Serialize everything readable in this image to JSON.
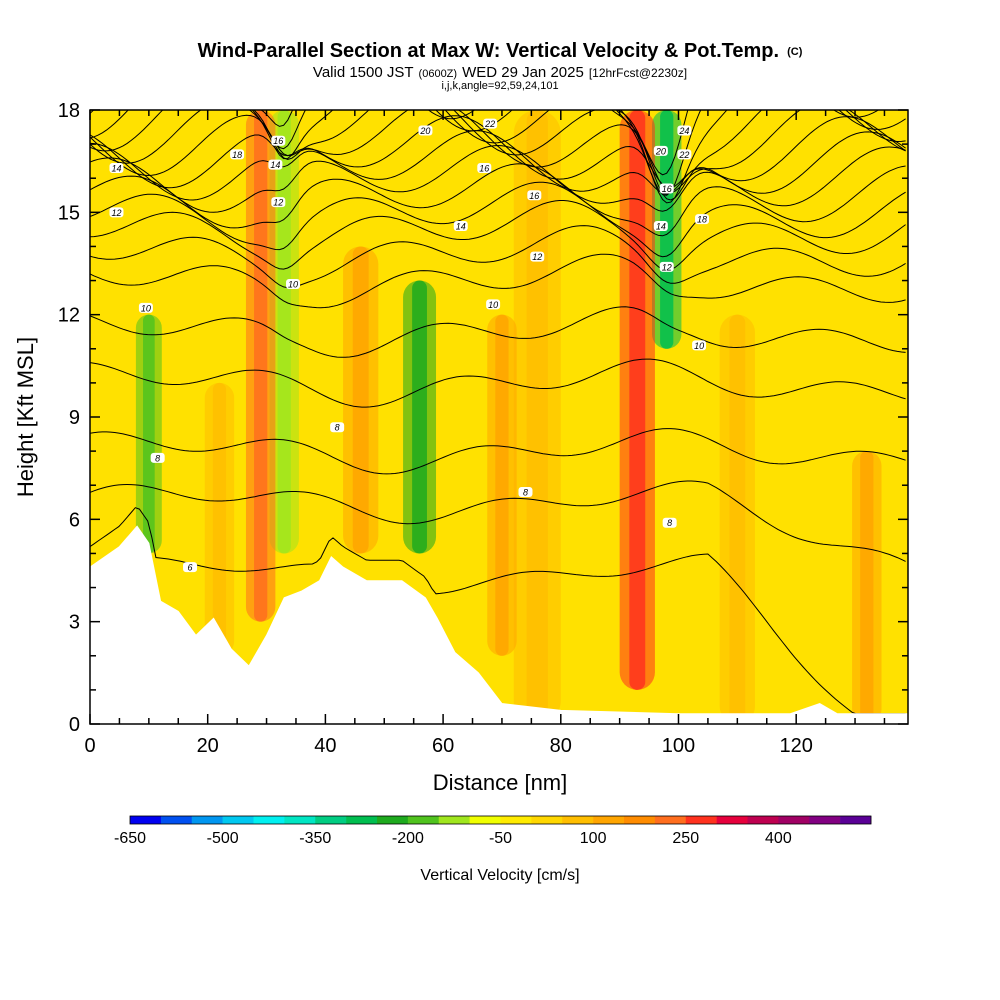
{
  "chart_data": {
    "type": "heatmap",
    "title": "Wind-Parallel Section at Max W: Vertical Velocity & Pot.Temp.",
    "title_mark": "(C)",
    "subtitle_parts": [
      "Valid 1500 JST",
      "(0600Z)",
      "WED 29 Jan 2025",
      "[12hrFcst@2230z]"
    ],
    "subsubtitle": "i,j,k,angle=92,59,24,101",
    "xlabel": "Distance [nm]",
    "ylabel": "Height [Kft MSL]",
    "xlim": [
      0,
      139
    ],
    "ylim": [
      0,
      18
    ],
    "xticks": [
      0,
      20,
      40,
      60,
      80,
      100,
      120
    ],
    "yticks": [
      0,
      3,
      6,
      9,
      12,
      15,
      18
    ],
    "colorbar": {
      "label": "Vertical Velocity [cm/s]",
      "tick_labels": [
        "-650",
        "-500",
        "-350",
        "-200",
        "-50",
        "100",
        "250",
        "400"
      ],
      "colors": [
        "#0000f0",
        "#0050f0",
        "#0096f0",
        "#00c8f0",
        "#00f0f0",
        "#00e6c3",
        "#00cd82",
        "#00be50",
        "#1eaa1e",
        "#50c31e",
        "#a0e61e",
        "#f0ff00",
        "#ffeb00",
        "#ffd700",
        "#ffbe00",
        "#ffa500",
        "#ff8c00",
        "#ff6e1e",
        "#ff321e",
        "#e6003c",
        "#be0050",
        "#a00064",
        "#820082",
        "#5a0096"
      ]
    },
    "background_color": "#ffe100",
    "terrain": [
      [
        0,
        4.6
      ],
      [
        5,
        5.2
      ],
      [
        8,
        5.8
      ],
      [
        10,
        5.3
      ],
      [
        12,
        3.6
      ],
      [
        15,
        3.3
      ],
      [
        18,
        2.6
      ],
      [
        21,
        3.1
      ],
      [
        24,
        2.2
      ],
      [
        27,
        1.7
      ],
      [
        30,
        2.6
      ],
      [
        33,
        3.7
      ],
      [
        36,
        3.9
      ],
      [
        39,
        4.2
      ],
      [
        41,
        4.9
      ],
      [
        43,
        4.6
      ],
      [
        47,
        4.2
      ],
      [
        53,
        4.2
      ],
      [
        57,
        3.7
      ],
      [
        59,
        3.1
      ],
      [
        62,
        2.1
      ],
      [
        66,
        1.5
      ],
      [
        70,
        0.6
      ],
      [
        80,
        0.4
      ],
      [
        100,
        0.3
      ],
      [
        119,
        0.3
      ],
      [
        124,
        0.6
      ],
      [
        127,
        0.3
      ],
      [
        139,
        0.3
      ]
    ],
    "vv_streaks": [
      {
        "x": 10,
        "width": 2.2,
        "bottom": 5,
        "top": 12,
        "value": -200
      },
      {
        "x": 33,
        "width": 2.5,
        "bottom": 5,
        "top": 18,
        "value": -150
      },
      {
        "x": 56,
        "width": 2.8,
        "bottom": 5,
        "top": 13,
        "value": -250
      },
      {
        "x": 98,
        "width": 2.5,
        "bottom": 11,
        "top": 18,
        "value": -300
      },
      {
        "x": 29,
        "width": 2.5,
        "bottom": 3,
        "top": 18,
        "value": 200
      },
      {
        "x": 93,
        "width": 3.0,
        "bottom": 1,
        "top": 18,
        "value": 250
      },
      {
        "x": 22,
        "width": 2.5,
        "bottom": 2,
        "top": 10,
        "value": 80
      },
      {
        "x": 46,
        "width": 3.0,
        "bottom": 5,
        "top": 14,
        "value": 100
      },
      {
        "x": 76,
        "width": 4.0,
        "bottom": 0,
        "top": 18,
        "value": 80
      },
      {
        "x": 110,
        "width": 3.0,
        "bottom": 0,
        "top": 12,
        "value": 80
      },
      {
        "x": 132,
        "width": 2.5,
        "bottom": 0,
        "top": 8,
        "value": 100
      },
      {
        "x": 70,
        "width": 2.5,
        "bottom": 2,
        "top": 12,
        "value": 100
      }
    ],
    "theta_contours": [
      {
        "level": "6",
        "label_x": 17,
        "base": 4.4
      },
      {
        "level": "8",
        "label_x": 76,
        "base": 6.5
      },
      {
        "level": "8",
        "label_x": 41,
        "base": 8.0
      },
      {
        "level": "10",
        "label_x": 34,
        "base": 11.5
      },
      {
        "level": "12",
        "label_x": 4,
        "base": 14.7
      },
      {
        "level": "14",
        "label_x": 4,
        "base": 15.5
      },
      {
        "level": "16",
        "label_x": 32,
        "base": 16.3
      },
      {
        "level": "18",
        "label_x": 25,
        "base": 17.1
      },
      {
        "level": "20",
        "label_x": 57,
        "base": 17.9
      },
      {
        "level": "22",
        "label_x": 68,
        "base": 18.8
      }
    ],
    "contour_labels": [
      {
        "text": "6",
        "x": 17,
        "y": 4.6
      },
      {
        "text": "8",
        "x": 11.5,
        "y": 7.8
      },
      {
        "text": "8",
        "x": 42,
        "y": 8.7
      },
      {
        "text": "8",
        "x": 74,
        "y": 6.8
      },
      {
        "text": "8",
        "x": 98.5,
        "y": 5.9
      },
      {
        "text": "10",
        "x": 9.5,
        "y": 12.2
      },
      {
        "text": "10",
        "x": 34.5,
        "y": 12.9
      },
      {
        "text": "10",
        "x": 68.5,
        "y": 12.3
      },
      {
        "text": "10",
        "x": 103.5,
        "y": 11.1
      },
      {
        "text": "12",
        "x": 4.5,
        "y": 15.0
      },
      {
        "text": "12",
        "x": 32,
        "y": 15.3
      },
      {
        "text": "12",
        "x": 76,
        "y": 13.7
      },
      {
        "text": "12",
        "x": 98,
        "y": 13.4
      },
      {
        "text": "14",
        "x": 4.5,
        "y": 16.3
      },
      {
        "text": "14",
        "x": 31.5,
        "y": 16.4
      },
      {
        "text": "14",
        "x": 63,
        "y": 14.6
      },
      {
        "text": "14",
        "x": 97,
        "y": 14.6
      },
      {
        "text": "16",
        "x": 32,
        "y": 17.1
      },
      {
        "text": "16",
        "x": 67,
        "y": 16.3
      },
      {
        "text": "16",
        "x": 75.5,
        "y": 15.5
      },
      {
        "text": "16",
        "x": 98,
        "y": 15.7
      },
      {
        "text": "18",
        "x": 25,
        "y": 16.7
      },
      {
        "text": "18",
        "x": 104,
        "y": 14.8
      },
      {
        "text": "20",
        "x": 57,
        "y": 17.4
      },
      {
        "text": "20",
        "x": 97,
        "y": 16.8
      },
      {
        "text": "22",
        "x": 68,
        "y": 17.6
      },
      {
        "text": "22",
        "x": 101,
        "y": 16.7
      },
      {
        "text": "24",
        "x": 101,
        "y": 17.4
      }
    ]
  }
}
